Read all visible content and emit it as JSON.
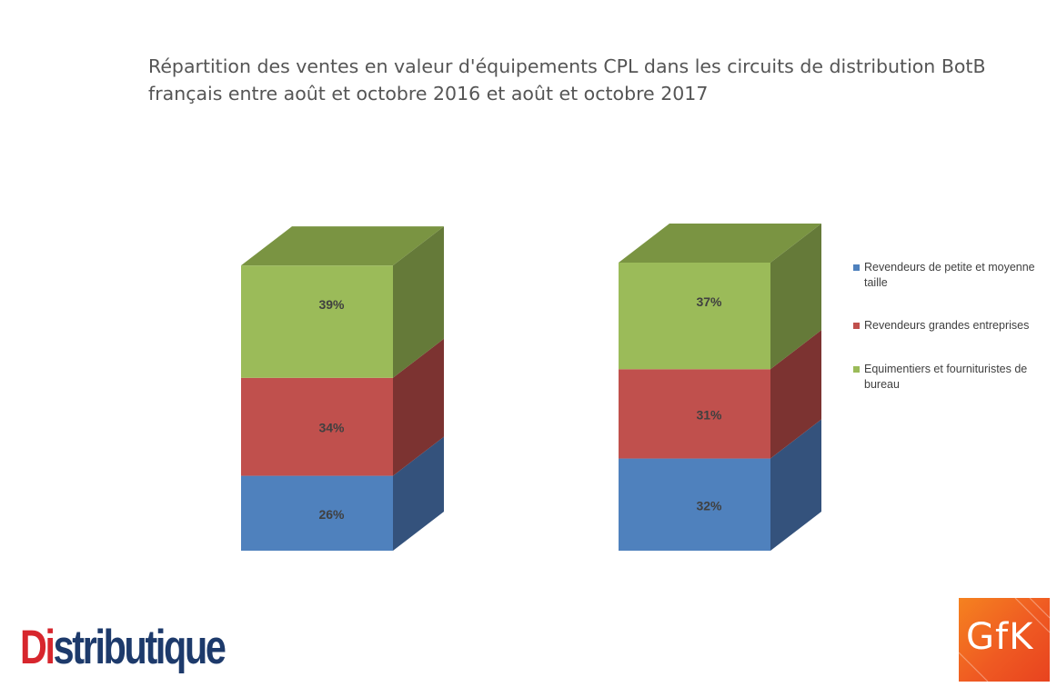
{
  "title_lines": [
    "Répartition des ventes en valeur d'équipements CPL dans les circuits de distribution BotB",
    "français entre août et octobre 2016 et août et octobre 2017"
  ],
  "chart_data": {
    "type": "bar",
    "stacked": true,
    "three_d": true,
    "title": "Répartition des ventes en valeur d'équipements CPL dans les circuits de distribution BotB français entre août et octobre 2016 et août et octobre 2017",
    "categories": [
      "",
      ""
    ],
    "series": [
      {
        "name": "Revendeurs de petite et moyenne taille",
        "values": [
          26,
          32
        ],
        "labels": [
          "26%",
          "32%"
        ],
        "color": "#4f81bd",
        "side_color": "#34527c",
        "top_color": "#43679b"
      },
      {
        "name": "Revendeurs grandes entreprises",
        "values": [
          34,
          31
        ],
        "labels": [
          "34%",
          "31%"
        ],
        "color": "#c0504d",
        "side_color": "#7c3331",
        "top_color": "#9a403e"
      },
      {
        "name": "Equimentiers et fournituristes de bureau",
        "values": [
          39,
          37
        ],
        "labels": [
          "39%",
          "37%"
        ],
        "color": "#9bbb59",
        "side_color": "#657a39",
        "top_color": "#7a9442"
      }
    ],
    "legend_position": "right",
    "grid": false
  },
  "legend": [
    {
      "line1": "Revendeurs de petite et moyenne",
      "line2": "taille",
      "color": "#4f81bd"
    },
    {
      "line1": "Revendeurs grandes entreprises",
      "line2": "",
      "color": "#c0504d"
    },
    {
      "line1": "Equimentiers et fournituristes de",
      "line2": "bureau",
      "color": "#9bbb59"
    }
  ],
  "logos": {
    "distributique_part1": "Di",
    "distributique_part2": "stributique",
    "gfk": "GfK"
  }
}
